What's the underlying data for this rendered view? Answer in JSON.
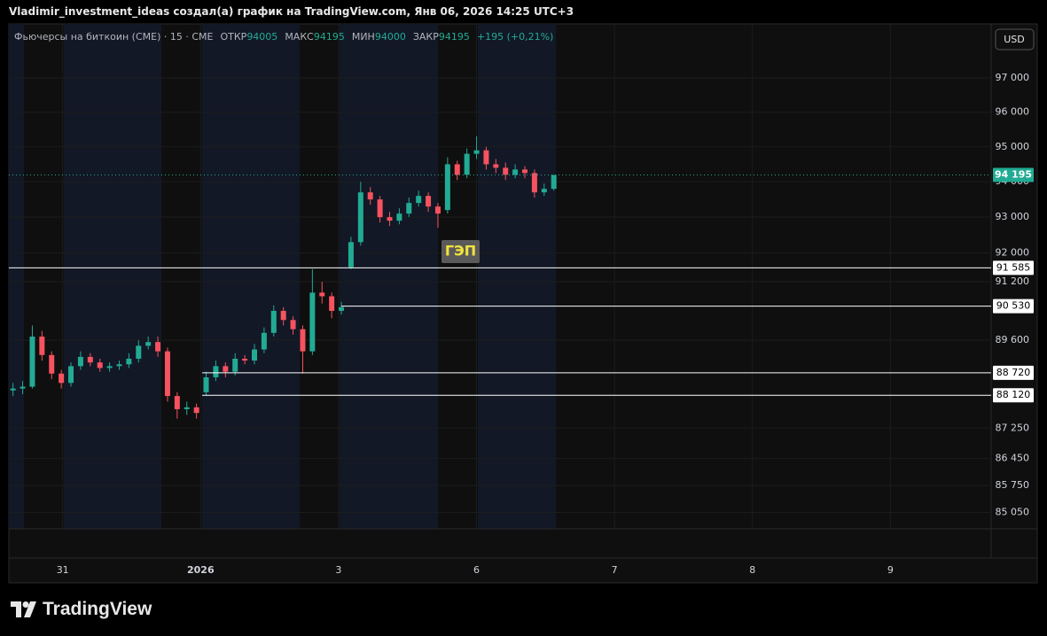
{
  "header": "Vladimir_investment_ideas создал(а) график на TradingView.com, Янв 06, 2026 14:25 UTC+3",
  "brand": "TradingView",
  "chart_data": {
    "type": "candlestick",
    "symbol": "Фьючерсы на биткоин (CME) · 15 · CME",
    "open_label": "ОТКР",
    "open_value": 94005,
    "high_label": "МАКС",
    "high_value": 94195,
    "low_label": "МИН",
    "low_value": 94000,
    "close_label": "ЗАКР",
    "close_value": 94195,
    "change": "+195 (+0,21%)",
    "currency": "USD",
    "annotation": "ГЭП",
    "up_color": "#22ab94",
    "down_color": "#f7525f",
    "log": true,
    "grid": true,
    "xlim": [
      -0.39,
      6.73
    ],
    "xticks": [
      {
        "value": 0,
        "label": "31"
      },
      {
        "value": 1,
        "label": "2026"
      },
      {
        "value": 2,
        "label": "3"
      },
      {
        "value": 3,
        "label": "6"
      },
      {
        "value": 4,
        "label": "7"
      },
      {
        "value": 5,
        "label": "8"
      },
      {
        "value": 6,
        "label": "9"
      }
    ],
    "ylim": [
      84630,
      98600
    ],
    "yticks": [
      {
        "value": 97000,
        "label": "97 000"
      },
      {
        "value": 96000,
        "label": "96 000"
      },
      {
        "value": 95000,
        "label": "95 000"
      },
      {
        "value": 94000,
        "label": "94 000"
      },
      {
        "value": 93000,
        "label": "93 000"
      },
      {
        "value": 92000,
        "label": "92 000"
      },
      {
        "value": 91200,
        "label": "91 200"
      },
      {
        "value": 89600,
        "label": "89 600"
      },
      {
        "value": 87250,
        "label": "87 250"
      },
      {
        "value": 86450,
        "label": "86 450"
      },
      {
        "value": 85750,
        "label": "85 750"
      },
      {
        "value": 85050,
        "label": "85 050"
      }
    ],
    "levels": [
      {
        "value": 91585,
        "label": "91 585"
      },
      {
        "value": 90530,
        "label": "90 530"
      },
      {
        "value": 88720,
        "label": "88 720"
      },
      {
        "value": 88120,
        "label": "88 120"
      }
    ],
    "last_price": {
      "value": 94195,
      "label": "94 195"
    },
    "x": [
      -0.36,
      -0.29,
      -0.22,
      -0.15,
      -0.08,
      -0.01,
      0.06,
      0.13,
      0.2,
      0.27,
      0.34,
      0.41,
      0.48,
      0.55,
      0.62,
      0.69,
      0.76,
      0.83,
      0.9,
      0.97,
      1.04,
      1.11,
      1.18,
      1.25,
      1.32,
      1.39,
      1.46,
      1.53,
      1.6,
      1.67,
      1.74,
      1.81,
      1.88,
      1.95,
      2.02,
      2.09,
      2.16,
      2.23,
      2.3,
      2.37,
      2.44,
      2.51,
      2.58,
      2.65,
      2.72,
      2.79,
      2.86,
      2.93,
      3.0,
      3.07,
      3.14,
      3.21,
      3.28,
      3.35,
      3.42,
      3.49,
      3.56
    ],
    "open": [
      88250,
      88300,
      88350,
      89700,
      89200,
      88700,
      88450,
      88900,
      89150,
      89000,
      88850,
      88900,
      88950,
      89100,
      89450,
      89550,
      89300,
      88100,
      87750,
      87800,
      88200,
      88600,
      88900,
      88750,
      89100,
      89050,
      89350,
      89800,
      90400,
      90150,
      89900,
      89300,
      90900,
      90800,
      90400,
      91600,
      92300,
      93700,
      93500,
      93000,
      92900,
      93100,
      93400,
      93600,
      93300,
      93200,
      94500,
      94200,
      94800,
      94900,
      94500,
      94400,
      94200,
      94350,
      94250,
      93700,
      93800
    ],
    "high": [
      88450,
      88500,
      90000,
      89850,
      89300,
      88800,
      89000,
      89300,
      89250,
      89100,
      89000,
      89050,
      89250,
      89600,
      89700,
      89700,
      89400,
      88200,
      87950,
      87900,
      88750,
      89050,
      89000,
      89250,
      89200,
      89500,
      89950,
      90550,
      90500,
      90250,
      90000,
      91550,
      91200,
      90900,
      90650,
      92450,
      94000,
      93850,
      93600,
      93150,
      93250,
      93550,
      93750,
      93700,
      93400,
      94700,
      94600,
      94950,
      95300,
      95000,
      94650,
      94550,
      94500,
      94450,
      94350,
      93950,
      94195
    ],
    "low": [
      88100,
      88150,
      88300,
      89050,
      88550,
      88300,
      88350,
      88800,
      88900,
      88750,
      88750,
      88800,
      88850,
      89000,
      89350,
      89150,
      87950,
      87500,
      87600,
      87500,
      88100,
      88500,
      88600,
      88650,
      88950,
      88950,
      89250,
      89700,
      90000,
      89750,
      88700,
      89200,
      90600,
      90200,
      90300,
      91550,
      92200,
      93350,
      92850,
      92750,
      92800,
      93000,
      93300,
      93150,
      92700,
      93100,
      94050,
      94100,
      94650,
      94350,
      94250,
      94050,
      94100,
      94100,
      93550,
      93600,
      93750
    ],
    "close": [
      88300,
      88350,
      89700,
      89200,
      88700,
      88450,
      88900,
      89150,
      89000,
      88850,
      88900,
      88950,
      89100,
      89450,
      89550,
      89300,
      88100,
      87750,
      87800,
      87650,
      88600,
      88900,
      88750,
      89100,
      89050,
      89350,
      89800,
      90400,
      90150,
      89900,
      89300,
      90900,
      90800,
      90400,
      90500,
      92300,
      93700,
      93500,
      93000,
      92900,
      93100,
      93400,
      93600,
      93300,
      93100,
      94500,
      94200,
      94800,
      94900,
      94500,
      94400,
      94200,
      94350,
      94250,
      93700,
      93800,
      94195
    ]
  }
}
